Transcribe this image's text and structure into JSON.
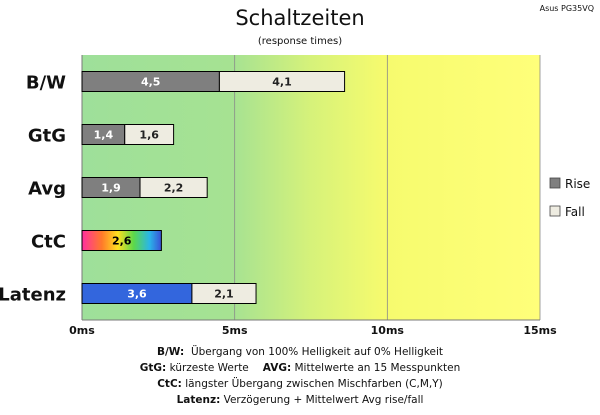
{
  "header": {
    "title": "Schaltzeiten",
    "subtitle": "(response times)",
    "model": "Asus PG35VQ"
  },
  "colors": {
    "rise": "#7f7f7f",
    "fall": "#eeece1",
    "latency_rise": "#3366dd",
    "zone_green": "#a0e0a0",
    "zone_yellow": "#ffff80"
  },
  "chart_data": {
    "type": "bar",
    "orientation": "horizontal",
    "stacked": true,
    "categories": [
      "B/W",
      "GtG",
      "Avg",
      "CtC",
      "Latenz"
    ],
    "series": [
      {
        "name": "Rise",
        "values": [
          4.5,
          1.4,
          1.9,
          2.6,
          3.6
        ]
      },
      {
        "name": "Fall",
        "values": [
          4.1,
          1.6,
          2.2,
          null,
          2.1
        ]
      }
    ],
    "value_labels": {
      "rise": [
        "4,5",
        "1,4",
        "1,9",
        "2,6",
        "3,6"
      ],
      "fall": [
        "4,1",
        "1,6",
        "2,2",
        "",
        "2,1"
      ]
    },
    "xlim": [
      0,
      15
    ],
    "xticks": [
      0,
      5,
      10,
      15
    ],
    "xtick_labels": [
      "0ms",
      "5ms",
      "10ms",
      "15ms"
    ],
    "grid": true,
    "legend_position": "right",
    "background": "gradient green to yellow"
  },
  "notes": {
    "line1_label": "B/W:",
    "line1_text": "Übergang von 100% Helligkeit auf 0% Helligkeit",
    "line2_label_a": "GtG:",
    "line2_text_a": "kürzeste Werte",
    "line2_label_b": "AVG:",
    "line2_text_b": "Mittelwerte an 15 Messpunkten",
    "line3_label": "CtC:",
    "line3_text": "längster Übergang zwischen Mischfarben (C,M,Y)",
    "line4_label": "Latenz:",
    "line4_text": "Verzögerung + Mittelwert Avg rise/fall"
  }
}
